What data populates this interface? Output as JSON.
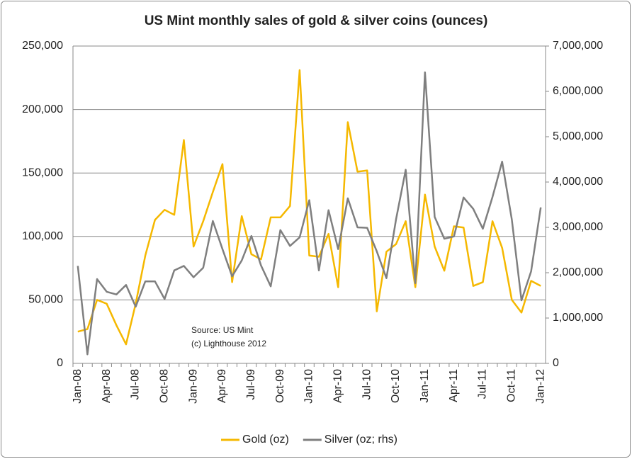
{
  "chart_data": {
    "type": "line",
    "title": "US Mint monthly sales of gold & silver coins (ounces)",
    "annotations": [
      "Source: US Mint",
      "(c) Lighthouse 2012"
    ],
    "categories": [
      "Jan-08",
      null,
      null,
      "Apr-08",
      null,
      null,
      "Jul-08",
      null,
      null,
      "Oct-08",
      null,
      null,
      "Jan-09",
      null,
      null,
      "Apr-09",
      null,
      null,
      "Jul-09",
      null,
      null,
      "Oct-09",
      null,
      null,
      "Jan-10",
      null,
      null,
      "Apr-10",
      null,
      null,
      "Jul-10",
      null,
      null,
      "Oct-10",
      null,
      null,
      "Jan-11",
      null,
      null,
      "Apr-11",
      null,
      null,
      "Jul-11",
      null,
      null,
      "Oct-11",
      null,
      null,
      "Jan-12"
    ],
    "series": [
      {
        "name": "Gold (oz)",
        "color": "#f5b800",
        "axis": "y",
        "values": [
          25000,
          27000,
          50000,
          47000,
          30000,
          15000,
          47000,
          85000,
          113000,
          121000,
          117000,
          176000,
          92000,
          112000,
          135000,
          157000,
          64000,
          116000,
          86000,
          82000,
          115000,
          115000,
          124000,
          231000,
          85000,
          84000,
          102000,
          60000,
          190000,
          151000,
          152000,
          41000,
          88000,
          94000,
          112000,
          60000,
          133000,
          92000,
          73000,
          108000,
          107000,
          61000,
          64000,
          112000,
          91000,
          50000,
          40000,
          65000,
          61000
        ]
      },
      {
        "name": "Silver (oz; rhs)",
        "color": "#7f7f7f",
        "axis": "y2",
        "values": [
          2150000,
          200000,
          1860000,
          1580000,
          1520000,
          1730000,
          1250000,
          1810000,
          1810000,
          1420000,
          2050000,
          2150000,
          1900000,
          2110000,
          3140000,
          2520000,
          1920000,
          2270000,
          2810000,
          2160000,
          1700000,
          2940000,
          2590000,
          2780000,
          3600000,
          2050000,
          3380000,
          2520000,
          3640000,
          3000000,
          2990000,
          2470000,
          1880000,
          3180000,
          4270000,
          1770000,
          6420000,
          3230000,
          2750000,
          2800000,
          3660000,
          3410000,
          2970000,
          3670000,
          4450000,
          3170000,
          1390000,
          2030000,
          3440000
        ]
      }
    ],
    "ylim": [
      0,
      250000
    ],
    "yticks": [
      0,
      {
        "value": 50000,
        "label": "50,000"
      },
      {
        "value": 100000,
        "label": "100,000"
      },
      {
        "value": 150000,
        "label": "150,000"
      },
      {
        "value": 200000,
        "label": "200,000"
      },
      {
        "value": 250000,
        "label": "250,000"
      }
    ],
    "y2lim": [
      0,
      7000000
    ],
    "y2ticks": [
      0,
      {
        "value": 1000000,
        "label": "1,000,000"
      },
      {
        "value": 2000000,
        "label": "2,000,000"
      },
      {
        "value": 3000000,
        "label": "3,000,000"
      },
      {
        "value": 4000000,
        "label": "4,000,000"
      },
      {
        "value": 5000000,
        "label": "5,000,000"
      },
      {
        "value": 6000000,
        "label": "6,000,000"
      },
      {
        "value": 7000000,
        "label": "7,000,000"
      }
    ],
    "grid": true,
    "legend": "bottom"
  }
}
